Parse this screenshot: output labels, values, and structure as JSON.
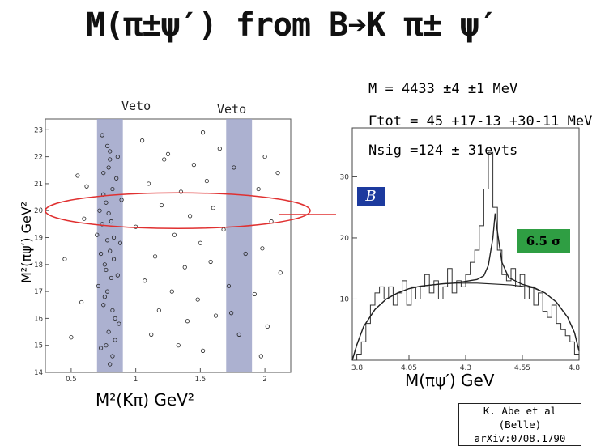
{
  "slide": {
    "title": "M(π±ψ′) from B➔K π± ψ′",
    "veto_left": "Veto",
    "veto_right": "Veto",
    "dalitz_ylabel": "M²(πψ′) GeV²",
    "dalitz_xlabel": "M²(Kπ) GeV²",
    "mass_line": "M = 4433 ±4 ±1 MeV",
    "width_line": "Γtot = 45 +17-13 +30-11 MeV",
    "nsig_line": "Nsig =124 ± 31evts",
    "significance": "6.5 σ",
    "hist_xlabel": "M(πψ′) GeV",
    "belle_logo": "B",
    "ref_line1": "K. Abe et al (Belle)",
    "ref_line2": "arXiv:0708.1790",
    "colors": {
      "veto_band": "#9ea3c8",
      "ellipse": "#e03030",
      "significance_box": "#2f9e43",
      "fit": "#222222"
    }
  },
  "chart_data": [
    {
      "type": "scatter",
      "title": "",
      "xlabel": "M²(Kπ) GeV²",
      "ylabel": "M²(πψ′) GeV²",
      "xlim": [
        0.3,
        2.2
      ],
      "ylim": [
        14,
        23.4
      ],
      "x_ticks": [
        "0.5",
        "1",
        "1.5",
        "2"
      ],
      "y_ticks": [
        "14",
        "15",
        "16",
        "17",
        "18",
        "19",
        "20",
        "21",
        "22",
        "23"
      ],
      "veto_bands_x": [
        [
          0.7,
          0.9
        ],
        [
          1.7,
          1.9
        ]
      ],
      "highlight_y_band": [
        19.4,
        20.6
      ],
      "points": [
        [
          0.78,
          22.4
        ],
        [
          0.8,
          21.9
        ],
        [
          0.75,
          21.4
        ],
        [
          0.82,
          20.8
        ],
        [
          0.77,
          20.3
        ],
        [
          0.79,
          19.9
        ],
        [
          0.74,
          19.5
        ],
        [
          0.83,
          19.0
        ],
        [
          0.8,
          18.5
        ],
        [
          0.76,
          18.0
        ],
        [
          0.81,
          17.5
        ],
        [
          0.78,
          17.0
        ],
        [
          0.75,
          16.5
        ],
        [
          0.84,
          16.0
        ],
        [
          0.79,
          15.5
        ],
        [
          0.77,
          15.0
        ],
        [
          0.82,
          14.6
        ],
        [
          0.86,
          22.0
        ],
        [
          0.72,
          20.0
        ],
        [
          0.88,
          18.8
        ],
        [
          0.71,
          17.2
        ],
        [
          0.87,
          15.8
        ],
        [
          0.73,
          14.9
        ],
        [
          0.85,
          21.2
        ],
        [
          0.7,
          19.1
        ],
        [
          0.89,
          20.4
        ],
        [
          0.74,
          22.8
        ],
        [
          0.8,
          14.3
        ],
        [
          0.76,
          16.8
        ],
        [
          0.83,
          18.2
        ],
        [
          0.79,
          21.6
        ],
        [
          0.81,
          19.6
        ],
        [
          0.77,
          17.8
        ],
        [
          0.84,
          15.2
        ],
        [
          0.75,
          20.6
        ],
        [
          0.78,
          18.9
        ],
        [
          0.82,
          16.3
        ],
        [
          0.8,
          22.2
        ],
        [
          0.86,
          17.6
        ],
        [
          0.73,
          18.4
        ],
        [
          1.05,
          22.6
        ],
        [
          1.25,
          22.1
        ],
        [
          1.45,
          21.7
        ],
        [
          1.65,
          22.3
        ],
        [
          2.0,
          22.0
        ],
        [
          2.1,
          21.4
        ],
        [
          1.1,
          21.0
        ],
        [
          1.35,
          20.7
        ],
        [
          1.55,
          21.1
        ],
        [
          1.95,
          20.8
        ],
        [
          1.2,
          20.2
        ],
        [
          1.42,
          19.8
        ],
        [
          1.6,
          20.1
        ],
        [
          2.05,
          19.6
        ],
        [
          1.0,
          19.4
        ],
        [
          1.3,
          19.1
        ],
        [
          1.5,
          18.8
        ],
        [
          1.98,
          18.6
        ],
        [
          1.15,
          18.3
        ],
        [
          1.38,
          17.9
        ],
        [
          1.58,
          18.1
        ],
        [
          2.12,
          17.7
        ],
        [
          1.07,
          17.4
        ],
        [
          1.28,
          17.0
        ],
        [
          1.48,
          16.7
        ],
        [
          1.92,
          16.9
        ],
        [
          1.18,
          16.3
        ],
        [
          1.4,
          15.9
        ],
        [
          1.62,
          16.1
        ],
        [
          2.02,
          15.7
        ],
        [
          1.12,
          15.4
        ],
        [
          1.33,
          15.0
        ],
        [
          1.52,
          14.8
        ],
        [
          1.97,
          14.6
        ],
        [
          0.55,
          21.3
        ],
        [
          0.6,
          19.7
        ],
        [
          0.45,
          18.2
        ],
        [
          0.58,
          16.6
        ],
        [
          0.5,
          15.3
        ],
        [
          0.62,
          20.9
        ],
        [
          1.22,
          21.9
        ],
        [
          1.52,
          22.9
        ],
        [
          1.68,
          19.3
        ],
        [
          1.72,
          17.2
        ],
        [
          1.8,
          15.4
        ],
        [
          1.76,
          21.6
        ],
        [
          1.85,
          18.4
        ],
        [
          1.74,
          16.2
        ]
      ]
    },
    {
      "type": "line",
      "title": "",
      "xlabel": "M(πψ′) GeV",
      "ylabel": "",
      "xlim": [
        3.8,
        4.8
      ],
      "ylim": [
        0,
        38
      ],
      "x_ticks": [
        "3.8",
        "4.05",
        "4.3",
        "4.55",
        "4.8"
      ],
      "y_ticks": [
        "10",
        "20",
        "30"
      ],
      "series": [
        {
          "kind": "histogram",
          "bin_width": 0.02,
          "values": [
            0,
            1,
            3,
            6,
            9,
            11,
            12,
            10,
            12,
            9,
            11,
            13,
            9,
            12,
            10,
            12,
            14,
            11,
            13,
            10,
            12,
            15,
            11,
            13,
            12,
            14,
            16,
            18,
            22,
            28,
            34,
            25,
            18,
            14,
            13,
            15,
            12,
            14,
            10,
            12,
            9,
            11,
            8,
            7,
            9,
            6,
            5,
            4,
            3,
            1
          ]
        },
        {
          "kind": "fit",
          "values": [
            [
              3.8,
              0
            ],
            [
              3.82,
              2.5
            ],
            [
              3.85,
              5.5
            ],
            [
              3.9,
              8.3
            ],
            [
              3.95,
              10
            ],
            [
              4.0,
              11
            ],
            [
              4.05,
              11.7
            ],
            [
              4.1,
              12.1
            ],
            [
              4.15,
              12.3
            ],
            [
              4.2,
              12.5
            ],
            [
              4.25,
              12.6
            ],
            [
              4.3,
              12.9
            ],
            [
              4.35,
              13.2
            ],
            [
              4.38,
              13.8
            ],
            [
              4.4,
              15.5
            ],
            [
              4.42,
              20
            ],
            [
              4.43,
              24
            ],
            [
              4.44,
              21
            ],
            [
              4.46,
              16
            ],
            [
              4.49,
              13.5
            ],
            [
              4.55,
              12.4
            ],
            [
              4.6,
              11.9
            ],
            [
              4.65,
              11.0
            ],
            [
              4.7,
              9.5
            ],
            [
              4.75,
              7
            ],
            [
              4.78,
              4.5
            ],
            [
              4.8,
              1.5
            ]
          ]
        },
        {
          "kind": "background",
          "values": [
            [
              3.8,
              0
            ],
            [
              3.82,
              2.5
            ],
            [
              3.85,
              5.5
            ],
            [
              3.9,
              8.3
            ],
            [
              3.95,
              10
            ],
            [
              4.0,
              11
            ],
            [
              4.05,
              11.7
            ],
            [
              4.1,
              12.1
            ],
            [
              4.15,
              12.3
            ],
            [
              4.2,
              12.5
            ],
            [
              4.25,
              12.6
            ],
            [
              4.3,
              12.6
            ],
            [
              4.35,
              12.6
            ],
            [
              4.4,
              12.5
            ],
            [
              4.45,
              12.4
            ],
            [
              4.5,
              12.3
            ],
            [
              4.55,
              12.1
            ],
            [
              4.6,
              11.8
            ],
            [
              4.65,
              11.0
            ],
            [
              4.7,
              9.5
            ],
            [
              4.75,
              7
            ],
            [
              4.78,
              4.5
            ],
            [
              4.8,
              1.5
            ]
          ]
        }
      ]
    }
  ]
}
